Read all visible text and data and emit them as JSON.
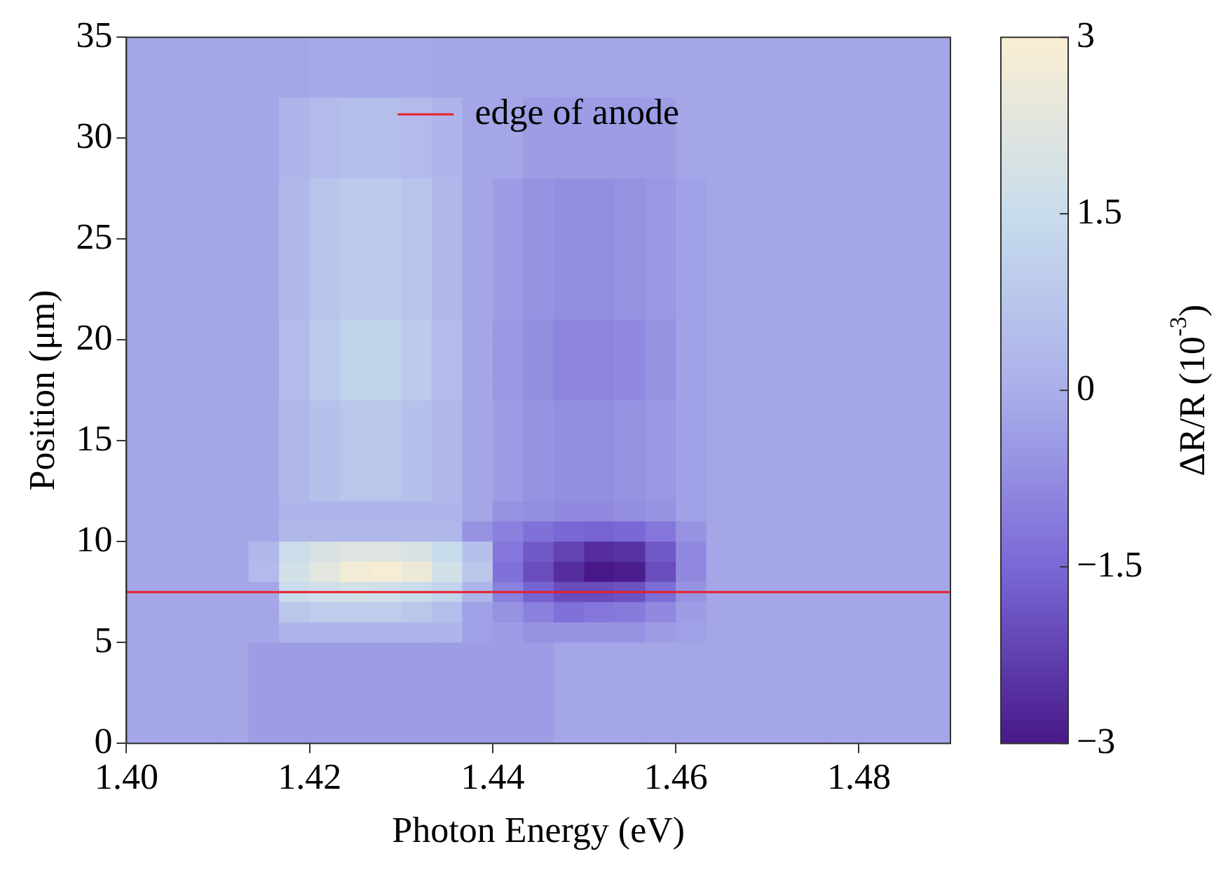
{
  "chart_data": {
    "type": "heatmap",
    "xlabel": "Photon Energy (eV)",
    "ylabel": "Position (μm)",
    "clabel": "ΔR/R (10$^{-3}$)",
    "xlim": [
      1.4,
      1.49
    ],
    "xticks": [
      {
        "value": 1.4,
        "label": "1.40"
      },
      {
        "value": 1.42,
        "label": "1.42"
      },
      {
        "value": 1.44,
        "label": "1.44"
      },
      {
        "value": 1.46,
        "label": "1.46"
      },
      {
        "value": 1.48,
        "label": "1.48"
      }
    ],
    "ylim": [
      0,
      35
    ],
    "yticks": [
      0,
      5,
      10,
      15,
      20,
      25,
      30,
      35
    ],
    "clim": [
      -3,
      3
    ],
    "cticks": [
      {
        "value": -3,
        "label": "−3"
      },
      {
        "value": -1.5,
        "label": "−1.5"
      },
      0,
      1.5,
      3
    ],
    "legend": "top",
    "ref_lines": [
      {
        "axis": "y",
        "value": 7.5,
        "label": "edge of anode",
        "color": "#e8202a"
      }
    ],
    "cells": [
      [
        -0.2,
        -0.2,
        -0.2,
        -0.2,
        -0.2,
        -0.2,
        -0.1,
        -0.1,
        -0.1,
        -0.1,
        -0.2,
        -0.2,
        -0.2,
        -0.2,
        -0.2,
        -0.2,
        -0.2,
        -0.2,
        -0.2,
        -0.2,
        -0.2,
        -0.2,
        -0.2,
        -0.2,
        -0.2,
        -0.2,
        -0.2
      ],
      [
        -0.2,
        -0.2,
        -0.2,
        -0.2,
        -0.2,
        -0.2,
        -0.1,
        -0.1,
        -0.1,
        -0.1,
        -0.2,
        -0.2,
        -0.2,
        -0.2,
        -0.2,
        -0.2,
        -0.2,
        -0.2,
        -0.2,
        -0.2,
        -0.2,
        -0.2,
        -0.2,
        -0.2,
        -0.2,
        -0.2,
        -0.2
      ],
      [
        -0.2,
        -0.2,
        -0.2,
        -0.2,
        -0.2,
        -0.2,
        -0.1,
        -0.1,
        -0.1,
        -0.1,
        -0.2,
        -0.2,
        -0.2,
        -0.2,
        -0.2,
        -0.2,
        -0.2,
        -0.2,
        -0.2,
        -0.2,
        -0.2,
        -0.2,
        -0.2,
        -0.2,
        -0.2,
        -0.2,
        -0.2
      ],
      [
        -0.2,
        -0.2,
        -0.2,
        -0.2,
        -0.2,
        0.2,
        0.4,
        0.5,
        0.5,
        0.4,
        0.2,
        -0.2,
        -0.2,
        -0.4,
        -0.4,
        -0.4,
        -0.4,
        -0.4,
        -0.2,
        -0.2,
        -0.2,
        -0.2,
        -0.2,
        -0.2,
        -0.2,
        -0.2,
        -0.2
      ],
      [
        -0.2,
        -0.2,
        -0.2,
        -0.2,
        -0.2,
        0.2,
        0.4,
        0.5,
        0.5,
        0.4,
        0.2,
        -0.2,
        -0.2,
        -0.4,
        -0.4,
        -0.4,
        -0.4,
        -0.4,
        -0.2,
        -0.2,
        -0.2,
        -0.2,
        -0.2,
        -0.2,
        -0.2,
        -0.2,
        -0.2
      ],
      [
        -0.2,
        -0.2,
        -0.2,
        -0.2,
        -0.2,
        0.2,
        0.4,
        0.5,
        0.5,
        0.4,
        0.2,
        -0.2,
        -0.2,
        -0.4,
        -0.4,
        -0.4,
        -0.4,
        -0.4,
        -0.2,
        -0.2,
        -0.2,
        -0.2,
        -0.2,
        -0.2,
        -0.2,
        -0.2,
        -0.2
      ],
      [
        -0.2,
        -0.2,
        -0.2,
        -0.2,
        -0.2,
        0.2,
        0.4,
        0.5,
        0.5,
        0.4,
        0.2,
        -0.2,
        -0.2,
        -0.4,
        -0.4,
        -0.4,
        -0.4,
        -0.4,
        -0.2,
        -0.2,
        -0.2,
        -0.2,
        -0.2,
        -0.2,
        -0.2,
        -0.2,
        -0.2
      ],
      [
        -0.2,
        -0.2,
        -0.2,
        -0.2,
        -0.2,
        0.3,
        0.7,
        0.9,
        0.9,
        0.7,
        0.3,
        -0.2,
        -0.4,
        -0.6,
        -0.7,
        -0.7,
        -0.6,
        -0.5,
        -0.3,
        -0.2,
        -0.2,
        -0.2,
        -0.2,
        -0.2,
        -0.2,
        -0.2,
        -0.2
      ],
      [
        -0.2,
        -0.2,
        -0.2,
        -0.2,
        -0.2,
        0.3,
        0.7,
        0.9,
        0.9,
        0.7,
        0.3,
        -0.2,
        -0.4,
        -0.6,
        -0.7,
        -0.7,
        -0.6,
        -0.5,
        -0.3,
        -0.2,
        -0.2,
        -0.2,
        -0.2,
        -0.2,
        -0.2,
        -0.2,
        -0.2
      ],
      [
        -0.2,
        -0.2,
        -0.2,
        -0.2,
        -0.2,
        0.3,
        0.7,
        0.9,
        0.9,
        0.7,
        0.3,
        -0.2,
        -0.4,
        -0.6,
        -0.7,
        -0.7,
        -0.6,
        -0.5,
        -0.3,
        -0.2,
        -0.2,
        -0.2,
        -0.2,
        -0.2,
        -0.2,
        -0.2,
        -0.2
      ],
      [
        -0.2,
        -0.2,
        -0.2,
        -0.2,
        -0.2,
        0.3,
        0.7,
        0.9,
        0.9,
        0.7,
        0.3,
        -0.2,
        -0.4,
        -0.6,
        -0.7,
        -0.7,
        -0.6,
        -0.5,
        -0.3,
        -0.2,
        -0.2,
        -0.2,
        -0.2,
        -0.2,
        -0.2,
        -0.2,
        -0.2
      ],
      [
        -0.2,
        -0.2,
        -0.2,
        -0.2,
        -0.2,
        0.3,
        0.7,
        0.9,
        0.9,
        0.7,
        0.3,
        -0.2,
        -0.4,
        -0.6,
        -0.7,
        -0.7,
        -0.6,
        -0.5,
        -0.3,
        -0.2,
        -0.2,
        -0.2,
        -0.2,
        -0.2,
        -0.2,
        -0.2,
        -0.2
      ],
      [
        -0.2,
        -0.2,
        -0.2,
        -0.2,
        -0.2,
        0.3,
        0.7,
        0.9,
        0.9,
        0.7,
        0.3,
        -0.2,
        -0.4,
        -0.6,
        -0.7,
        -0.7,
        -0.6,
        -0.5,
        -0.3,
        -0.2,
        -0.2,
        -0.2,
        -0.2,
        -0.2,
        -0.2,
        -0.2,
        -0.2
      ],
      [
        -0.2,
        -0.2,
        -0.2,
        -0.2,
        -0.2,
        0.3,
        0.7,
        0.9,
        0.9,
        0.7,
        0.3,
        -0.2,
        -0.4,
        -0.6,
        -0.7,
        -0.7,
        -0.6,
        -0.5,
        -0.3,
        -0.2,
        -0.2,
        -0.2,
        -0.2,
        -0.2,
        -0.2,
        -0.2,
        -0.2
      ],
      [
        -0.2,
        -0.2,
        -0.2,
        -0.2,
        -0.2,
        0.4,
        0.9,
        1.2,
        1.2,
        0.9,
        0.4,
        -0.2,
        -0.5,
        -0.7,
        -0.9,
        -0.9,
        -0.8,
        -0.6,
        -0.3,
        -0.2,
        -0.2,
        -0.2,
        -0.2,
        -0.2,
        -0.2,
        -0.2,
        -0.2
      ],
      [
        -0.2,
        -0.2,
        -0.2,
        -0.2,
        -0.2,
        0.4,
        0.9,
        1.2,
        1.2,
        0.9,
        0.4,
        -0.2,
        -0.5,
        -0.7,
        -0.9,
        -0.9,
        -0.8,
        -0.6,
        -0.3,
        -0.2,
        -0.2,
        -0.2,
        -0.2,
        -0.2,
        -0.2,
        -0.2,
        -0.2
      ],
      [
        -0.2,
        -0.2,
        -0.2,
        -0.2,
        -0.2,
        0.4,
        0.9,
        1.2,
        1.2,
        0.9,
        0.4,
        -0.2,
        -0.5,
        -0.7,
        -0.9,
        -0.9,
        -0.8,
        -0.6,
        -0.3,
        -0.2,
        -0.2,
        -0.2,
        -0.2,
        -0.2,
        -0.2,
        -0.2,
        -0.2
      ],
      [
        -0.2,
        -0.2,
        -0.2,
        -0.2,
        -0.2,
        0.4,
        0.9,
        1.2,
        1.2,
        0.9,
        0.4,
        -0.2,
        -0.5,
        -0.7,
        -0.9,
        -0.9,
        -0.8,
        -0.6,
        -0.3,
        -0.2,
        -0.2,
        -0.2,
        -0.2,
        -0.2,
        -0.2,
        -0.2,
        -0.2
      ],
      [
        -0.2,
        -0.2,
        -0.2,
        -0.2,
        -0.2,
        0.3,
        0.6,
        0.8,
        0.8,
        0.6,
        0.3,
        -0.2,
        -0.4,
        -0.6,
        -0.7,
        -0.7,
        -0.6,
        -0.5,
        -0.3,
        -0.2,
        -0.2,
        -0.2,
        -0.2,
        -0.2,
        -0.2,
        -0.2,
        -0.2
      ],
      [
        -0.2,
        -0.2,
        -0.2,
        -0.2,
        -0.2,
        0.3,
        0.6,
        0.8,
        0.8,
        0.6,
        0.3,
        -0.2,
        -0.4,
        -0.6,
        -0.7,
        -0.7,
        -0.6,
        -0.5,
        -0.3,
        -0.2,
        -0.2,
        -0.2,
        -0.2,
        -0.2,
        -0.2,
        -0.2,
        -0.2
      ],
      [
        -0.2,
        -0.2,
        -0.2,
        -0.2,
        -0.2,
        0.3,
        0.6,
        0.8,
        0.8,
        0.6,
        0.3,
        -0.2,
        -0.4,
        -0.6,
        -0.7,
        -0.7,
        -0.6,
        -0.5,
        -0.3,
        -0.2,
        -0.2,
        -0.2,
        -0.2,
        -0.2,
        -0.2,
        -0.2,
        -0.2
      ],
      [
        -0.2,
        -0.2,
        -0.2,
        -0.2,
        -0.2,
        0.3,
        0.6,
        0.8,
        0.8,
        0.6,
        0.3,
        -0.2,
        -0.4,
        -0.6,
        -0.7,
        -0.7,
        -0.6,
        -0.5,
        -0.3,
        -0.2,
        -0.2,
        -0.2,
        -0.2,
        -0.2,
        -0.2,
        -0.2,
        -0.2
      ],
      [
        -0.2,
        -0.2,
        -0.2,
        -0.2,
        -0.2,
        0.3,
        0.6,
        0.8,
        0.8,
        0.6,
        0.3,
        -0.2,
        -0.4,
        -0.6,
        -0.7,
        -0.7,
        -0.6,
        -0.5,
        -0.3,
        -0.2,
        -0.2,
        -0.2,
        -0.2,
        -0.2,
        -0.2,
        -0.2,
        -0.2
      ],
      [
        -0.2,
        -0.2,
        -0.2,
        -0.2,
        -0.2,
        0.2,
        0.2,
        0.2,
        0.2,
        0.2,
        0.2,
        -0.2,
        -0.6,
        -0.7,
        -0.8,
        -0.8,
        -0.7,
        -0.6,
        -0.3,
        -0.2,
        -0.2,
        -0.2,
        -0.2,
        -0.2,
        -0.2,
        -0.2,
        -0.2
      ],
      [
        -0.2,
        -0.2,
        -0.2,
        -0.2,
        -0.2,
        0.3,
        0.3,
        0.3,
        0.3,
        0.3,
        0.3,
        -0.6,
        -1.0,
        -1.3,
        -1.5,
        -1.6,
        -1.5,
        -1.2,
        -0.6,
        -0.2,
        -0.2,
        -0.2,
        -0.2,
        -0.2,
        -0.2,
        -0.2,
        -0.2
      ],
      [
        -0.2,
        -0.2,
        -0.2,
        -0.2,
        0.3,
        1.6,
        2.0,
        2.2,
        2.2,
        2.0,
        1.5,
        0.6,
        -1.2,
        -1.8,
        -2.2,
        -2.6,
        -2.5,
        -1.8,
        -0.8,
        -0.2,
        -0.2,
        -0.2,
        -0.2,
        -0.2,
        -0.2,
        -0.2,
        -0.2
      ],
      [
        -0.2,
        -0.2,
        -0.2,
        -0.2,
        0.4,
        1.8,
        2.3,
        2.8,
        2.9,
        2.6,
        1.8,
        0.8,
        -1.3,
        -2.0,
        -2.6,
        -3.0,
        -2.9,
        -2.0,
        -0.8,
        -0.2,
        -0.2,
        -0.2,
        -0.2,
        -0.2,
        -0.2,
        -0.2,
        -0.2
      ],
      [
        -0.2,
        -0.2,
        -0.2,
        -0.2,
        -0.2,
        1.5,
        1.7,
        1.8,
        1.7,
        1.5,
        1.2,
        0.2,
        -1.0,
        -1.6,
        -2.0,
        -2.0,
        -1.9,
        -1.4,
        -0.6,
        -0.2,
        -0.2,
        -0.2,
        -0.2,
        -0.2,
        -0.2,
        -0.2,
        -0.2
      ],
      [
        -0.2,
        -0.2,
        -0.2,
        -0.2,
        -0.2,
        0.8,
        1.0,
        1.0,
        1.0,
        0.8,
        0.5,
        -0.3,
        -0.6,
        -1.0,
        -1.3,
        -1.2,
        -1.1,
        -0.8,
        -0.4,
        -0.2,
        -0.2,
        -0.2,
        -0.2,
        -0.2,
        -0.2,
        -0.2,
        -0.2
      ],
      [
        -0.2,
        -0.2,
        -0.2,
        -0.2,
        -0.2,
        0.2,
        0.2,
        0.2,
        0.2,
        0.2,
        0.2,
        -0.3,
        -0.4,
        -0.6,
        -0.6,
        -0.6,
        -0.6,
        -0.4,
        -0.3,
        -0.2,
        -0.2,
        -0.2,
        -0.2,
        -0.2,
        -0.2,
        -0.2,
        -0.2
      ],
      [
        -0.2,
        -0.2,
        -0.2,
        -0.2,
        -0.4,
        -0.4,
        -0.4,
        -0.4,
        -0.4,
        -0.4,
        -0.4,
        -0.4,
        -0.4,
        -0.4,
        -0.2,
        -0.2,
        -0.2,
        -0.2,
        -0.2,
        -0.2,
        -0.2,
        -0.2,
        -0.2,
        -0.2,
        -0.2,
        -0.2,
        -0.2
      ],
      [
        -0.2,
        -0.2,
        -0.2,
        -0.2,
        -0.4,
        -0.4,
        -0.4,
        -0.4,
        -0.4,
        -0.4,
        -0.4,
        -0.4,
        -0.4,
        -0.4,
        -0.2,
        -0.2,
        -0.2,
        -0.2,
        -0.2,
        -0.2,
        -0.2,
        -0.2,
        -0.2,
        -0.2,
        -0.2,
        -0.2,
        -0.2
      ],
      [
        -0.2,
        -0.2,
        -0.2,
        -0.2,
        -0.4,
        -0.4,
        -0.4,
        -0.4,
        -0.4,
        -0.4,
        -0.4,
        -0.4,
        -0.4,
        -0.4,
        -0.2,
        -0.2,
        -0.2,
        -0.2,
        -0.2,
        -0.2,
        -0.2,
        -0.2,
        -0.2,
        -0.2,
        -0.2,
        -0.2,
        -0.2
      ],
      [
        -0.2,
        -0.2,
        -0.2,
        -0.2,
        -0.4,
        -0.4,
        -0.4,
        -0.4,
        -0.4,
        -0.4,
        -0.4,
        -0.4,
        -0.4,
        -0.4,
        -0.2,
        -0.2,
        -0.2,
        -0.2,
        -0.2,
        -0.2,
        -0.2,
        -0.2,
        -0.2,
        -0.2,
        -0.2,
        -0.2,
        -0.2
      ],
      [
        -0.2,
        -0.2,
        -0.2,
        -0.2,
        -0.4,
        -0.4,
        -0.4,
        -0.4,
        -0.4,
        -0.4,
        -0.4,
        -0.4,
        -0.4,
        -0.4,
        -0.2,
        -0.2,
        -0.2,
        -0.2,
        -0.2,
        -0.2,
        -0.2,
        -0.2,
        -0.2,
        -0.2,
        -0.2,
        -0.2,
        -0.2
      ]
    ]
  }
}
